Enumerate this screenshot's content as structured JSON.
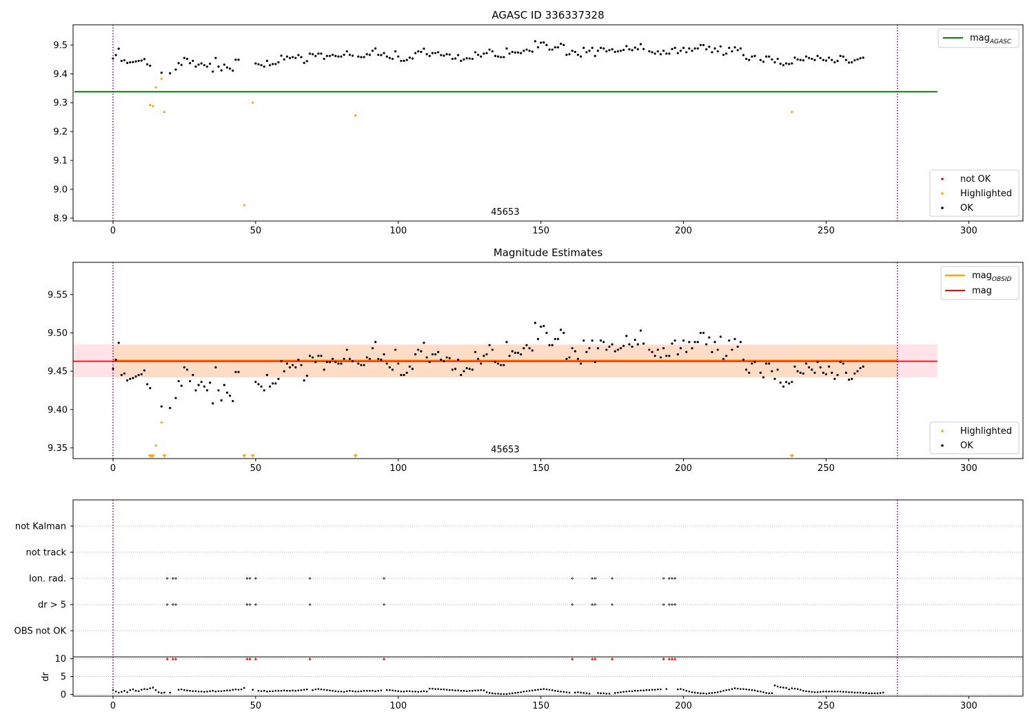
{
  "colors": {
    "ok": "#000000",
    "highlighted": "#ffa500",
    "not_ok": "#ff0000",
    "agasc_line": "#008000",
    "obsid_line": "#ffa500",
    "mag_line": "#ff0000",
    "band": "#ffc0cb",
    "band_obsid": "#ffdab9",
    "epoch_line": "#800080"
  },
  "chart_data": [
    {
      "type": "scatter",
      "title": "AGASC ID 336337328",
      "xlabel": "",
      "ylabel": "",
      "xlim": [
        -14,
        319
      ],
      "ylim": [
        8.89,
        9.57
      ],
      "x_ticks": [
        0,
        50,
        100,
        150,
        200,
        250,
        300
      ],
      "y_ticks": [
        8.9,
        9.0,
        9.1,
        9.2,
        9.3,
        9.4,
        9.5
      ],
      "obsid_annotation": {
        "text": "45653",
        "x": 137.5
      },
      "epoch_bounds": [
        0,
        275
      ],
      "mag_agasc": {
        "value": 9.338,
        "x_range": [
          0,
          289
        ]
      },
      "legend_lines": [
        {
          "label": "mag",
          "sub": "AGASC"
        }
      ],
      "legend_points": [
        {
          "label": "not OK",
          "key": "not_ok"
        },
        {
          "label": "Highlighted",
          "key": "highlighted"
        },
        {
          "label": "OK",
          "key": "ok"
        }
      ],
      "series_ok_x0": 0,
      "series_ok": [
        9.453,
        9.465,
        9.487,
        9.445,
        9.447,
        9.438,
        9.44,
        9.441,
        9.443,
        9.445,
        9.446,
        9.451,
        9.433,
        9.428,
        null,
        null,
        null,
        9.404,
        null,
        null,
        9.402,
        null,
        9.415,
        9.437,
        9.431,
        9.455,
        9.452,
        9.437,
        9.445,
        9.425,
        9.432,
        9.436,
        9.43,
        9.425,
        9.435,
        9.408,
        9.455,
        9.425,
        9.412,
        9.432,
        9.422,
        9.418,
        9.411,
        9.449,
        9.449,
        null,
        null,
        null,
        null,
        null,
        9.436,
        9.433,
        9.43,
        9.425,
        9.445,
        9.43,
        9.434,
        9.434,
        9.44,
        9.463,
        9.45,
        9.46,
        9.455,
        9.458,
        9.455,
        9.465,
        9.458,
        9.438,
        9.444,
        9.47,
        9.468,
        9.462,
        9.47,
        9.47,
        9.452,
        9.462,
        9.462,
        9.466,
        9.462,
        9.46,
        9.46,
        9.466,
        9.478,
        9.466,
        9.463,
        null,
        9.46,
        9.458,
        9.458,
        9.468,
        9.466,
        9.48,
        9.488,
        9.466,
        9.465,
        9.472,
        9.46,
        9.455,
        9.452,
        9.478,
        9.46,
        9.445,
        9.445,
        9.448,
        9.456,
        9.453,
        9.472,
        9.478,
        9.476,
        9.487,
        9.468,
        9.462,
        9.472,
        9.472,
        9.475,
        9.465,
        9.463,
        9.468,
        9.467,
        9.452,
        9.453,
        9.465,
        9.445,
        9.45,
        9.454,
        9.453,
        9.452,
        9.475,
        9.466,
        9.46,
        9.47,
        9.472,
        9.484,
        9.478,
        9.462,
        9.46,
        9.458,
        9.458,
        9.488,
        9.47,
        9.476,
        9.474,
        9.474,
        9.472,
        9.48,
        9.484,
        9.48,
        9.477,
        9.513,
        9.492,
        9.508,
        9.509,
        9.5,
        9.484,
        9.484,
        9.492,
        9.492,
        9.504,
        9.5,
        9.466,
        9.468,
        9.48,
        9.476,
        9.466,
        9.46,
        9.49,
        9.475,
        9.48,
        9.49,
        9.462,
        9.48,
        9.49,
        9.488,
        9.478,
        9.482,
        9.485,
        9.476,
        9.478,
        9.48,
        9.483,
        9.496,
        9.485,
        9.482,
        9.491,
        9.485,
        9.503,
        9.486,
        null,
        9.478,
        9.475,
        9.47,
        9.478,
        9.468,
        9.48,
        9.47,
        9.47,
        9.486,
        9.49,
        9.472,
        9.48,
        9.49,
        9.475,
        9.488,
        9.48,
        9.488,
        9.488,
        9.5,
        9.5,
        9.485,
        9.494,
        9.475,
        9.488,
        9.478,
        9.495,
        9.466,
        9.47,
        9.49,
        9.478,
        9.492,
        9.482,
        9.488,
        9.465,
        9.452,
        9.448,
        9.46,
        9.462,
        null,
        9.448,
        9.442,
        9.46,
        9.46,
        9.45,
        9.44,
        9.452,
        9.435,
        9.43,
        9.436,
        9.434,
        9.436,
        9.456,
        9.45,
        9.448,
        9.447,
        9.46,
        9.455,
        9.452,
        9.448,
        9.462,
        9.455,
        9.448,
        9.446,
        9.456,
        9.448,
        9.44,
        9.445,
        9.462,
        9.46,
        9.448,
        9.439,
        9.44,
        9.447,
        9.45,
        9.454,
        9.456
      ],
      "series_highlighted": [
        [
          13,
          9.292
        ],
        [
          14,
          9.288
        ],
        [
          15,
          9.353
        ],
        [
          17,
          9.383
        ],
        [
          18,
          9.268
        ],
        [
          46,
          8.945
        ],
        [
          49,
          9.3
        ],
        [
          85,
          9.256
        ],
        [
          238,
          9.268
        ]
      ],
      "series_not_ok": []
    },
    {
      "type": "scatter",
      "title": "Magnitude Estimates",
      "xlabel": "",
      "ylabel": "",
      "xlim": [
        -14,
        319
      ],
      "ylim": [
        9.336,
        9.592
      ],
      "x_ticks": [
        0,
        50,
        100,
        150,
        200,
        250,
        300
      ],
      "y_ticks": [
        9.35,
        9.4,
        9.45,
        9.5,
        9.55
      ],
      "obsid_annotation": {
        "text": "45653",
        "x": 137.5
      },
      "epoch_bounds": [
        0,
        275
      ],
      "mag": {
        "value": 9.463,
        "band": [
          9.442,
          9.485
        ],
        "x_range": [
          -14,
          289
        ]
      },
      "mag_obsid": {
        "value": 9.464,
        "band": [
          9.442,
          9.484
        ],
        "x_range": [
          0,
          275
        ]
      },
      "legend_lines": [
        {
          "label": "mag",
          "sub": "OBSID",
          "key": "obsid_line"
        },
        {
          "label": "mag",
          "sub": "",
          "key": "mag_line"
        }
      ],
      "legend_points": [
        {
          "label": "Highlighted",
          "key": "highlighted"
        },
        {
          "label": "OK",
          "key": "ok"
        }
      ],
      "highlighted_in_range": [
        [
          15,
          9.353
        ],
        [
          17,
          9.383
        ]
      ],
      "highlighted_below_range_x": [
        13,
        13.5,
        14,
        18,
        46,
        49,
        85,
        238
      ]
    },
    {
      "type": "scatter",
      "title": "",
      "xlim": [
        -14,
        319
      ],
      "x_ticks": [
        0,
        50,
        100,
        150,
        200,
        250,
        300
      ],
      "epoch_bounds": [
        0,
        275
      ],
      "flag_rows": [
        "not Kalman",
        "not track",
        "Ion. rad.",
        "dr > 5",
        "OBS not OK"
      ],
      "flag_events": {
        "not Kalman": [],
        "not track": [],
        "Ion. rad.": [
          19,
          21,
          22,
          47,
          48,
          50,
          69,
          95,
          161,
          168,
          169,
          175,
          193,
          195,
          196,
          197
        ],
        "dr > 5": [
          19,
          21,
          22,
          47,
          48,
          50,
          69,
          95,
          161,
          168,
          169,
          175,
          193,
          195,
          196,
          197
        ],
        "OBS not OK": []
      },
      "dr_ylabel": "dr",
      "dr_ylim": [
        -0.5,
        10.5
      ],
      "dr_ticks": [
        0,
        5,
        10
      ],
      "dr_clip_points": [
        19,
        21,
        22,
        47,
        48,
        50,
        69,
        95,
        161,
        168,
        169,
        175,
        193,
        195,
        196,
        197
      ],
      "dr_x0": 0,
      "dr_values": [
        1.2,
        0.8,
        0.5,
        0.7,
        1.0,
        0.6,
        1.2,
        1.4,
        1.0,
        0.9,
        1.3,
        1.5,
        1.4,
        1.7,
        1.9,
        1.2,
        0.6,
        0.4,
        0.5,
        null,
        0.5,
        null,
        null,
        1.3,
        1.4,
        1.2,
        1.1,
        1.0,
        0.9,
        0.9,
        0.8,
        0.8,
        0.7,
        0.8,
        0.9,
        1.0,
        0.8,
        0.9,
        0.9,
        1.0,
        1.1,
        1.1,
        1.3,
        1.4,
        1.3,
        1.4,
        1.8,
        null,
        null,
        1.3,
        null,
        1.0,
        0.9,
        1.0,
        0.8,
        0.9,
        0.9,
        1.0,
        1.0,
        1.0,
        1.1,
        1.0,
        1.0,
        1.1,
        1.0,
        1.1,
        1.2,
        1.3,
        1.4,
        null,
        1.2,
        1.4,
        1.5,
        1.4,
        1.3,
        1.2,
        1.1,
        1.0,
        0.9,
        0.8,
        0.8,
        0.7,
        0.9,
        1.0,
        0.9,
        0.8,
        0.8,
        0.9,
        1.0,
        1.0,
        1.0,
        1.0,
        0.9,
        1.0,
        1.1,
        null,
        1.2,
        1.2,
        1.1,
        1.0,
        0.9,
        0.8,
        0.8,
        0.9,
        0.9,
        0.8,
        0.8,
        0.7,
        0.8,
        0.9,
        0.8,
        1.6,
        1.6,
        1.5,
        1.5,
        1.4,
        1.4,
        1.3,
        1.2,
        1.2,
        1.1,
        1.1,
        1.0,
        1.0,
        0.9,
        1.0,
        1.0,
        1.1,
        1.1,
        1.2,
        1.1,
        0.6,
        0.4,
        0.3,
        0.2,
        0.2,
        0.1,
        0.1,
        0.1,
        0.2,
        0.3,
        0.4,
        0.5,
        0.6,
        0.8,
        0.9,
        1.0,
        1.1,
        1.2,
        1.3,
        1.4,
        1.5,
        1.4,
        1.3,
        1.2,
        1.0,
        0.9,
        0.8,
        0.7,
        0.6,
        0.5,
        null,
        0.5,
        0.6,
        0.5,
        0.4,
        0.3,
        0.2,
        null,
        null,
        0.4,
        0.3,
        0.3,
        0.2,
        0.2,
        null,
        0.4,
        0.5,
        0.6,
        0.7,
        0.8,
        0.9,
        0.9,
        1.0,
        1.0,
        1.1,
        1.1,
        1.2,
        1.2,
        1.3,
        1.3,
        1.4,
        1.4,
        null,
        1.5,
        null,
        null,
        null,
        1.4,
        1.5,
        1.3,
        1.0,
        0.8,
        0.6,
        0.5,
        0.4,
        0.3,
        0.3,
        0.2,
        0.3,
        0.4,
        0.5,
        0.6,
        0.8,
        1.0,
        1.2,
        1.3,
        1.5,
        1.7,
        1.6,
        1.5,
        1.5,
        1.4,
        1.3,
        1.2,
        1.1,
        0.9,
        0.8,
        0.6,
        0.4,
        0.3,
        0.3,
        2.5,
        2.2,
        2.0,
        1.9,
        1.8,
        1.4,
        1.7,
        1.6,
        1.5,
        1.3,
        1.0,
        0.9,
        0.8,
        0.7,
        0.6,
        0.6,
        0.7,
        0.8,
        0.8,
        0.8,
        0.8,
        0.8,
        0.8,
        0.8,
        0.7,
        0.7,
        0.6,
        0.6,
        0.5,
        0.5,
        0.5,
        0.4,
        0.4,
        0.3,
        0.3,
        0.3,
        0.3,
        0.4,
        0.5
      ]
    }
  ]
}
